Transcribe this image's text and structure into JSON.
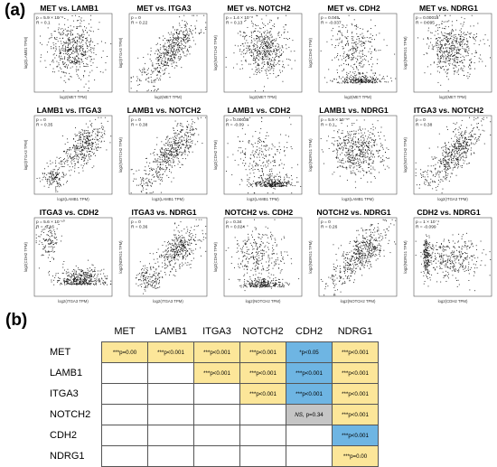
{
  "panel_labels": {
    "a": "(a)",
    "b": "(b)"
  },
  "chart_data": [
    {
      "type": "scatter",
      "title": "MET vs. LAMB1",
      "stat_p": "p = 5.9 × 10⁻⁶",
      "stat_r": "R = 0.1",
      "xlabel": "log2(MET TPM)",
      "ylabel": "log2(LAMB1 TPM)",
      "pattern": "blob"
    },
    {
      "type": "scatter",
      "title": "MET vs. ITGA3",
      "stat_p": "p = 0",
      "stat_r": "R = 0.22",
      "xlabel": "log2(MET TPM)",
      "ylabel": "log2(ITGA3 TPM)",
      "pattern": "diag"
    },
    {
      "type": "scatter",
      "title": "MET vs. NOTCH2",
      "stat_p": "p = 1.4 × 10⁻⁸",
      "stat_r": "R = 0.13",
      "xlabel": "log2(MET TPM)",
      "ylabel": "log2(NOTCH2 TPM)",
      "pattern": "blob"
    },
    {
      "type": "scatter",
      "title": "MET vs. CDH2",
      "stat_p": "p = 0.045",
      "stat_r": "R = -0.037",
      "xlabel": "log2(MET TPM)",
      "ylabel": "log2(CDH2 TPM)",
      "pattern": "split"
    },
    {
      "type": "scatter",
      "title": "MET vs. NDRG1",
      "stat_p": "p = 0.00018",
      "stat_r": "R = 0.095",
      "xlabel": "log2(MET TPM)",
      "ylabel": "log2(NDRG1 TPM)",
      "pattern": "blob"
    },
    {
      "type": "scatter",
      "title": "LAMB1 vs. ITGA3",
      "stat_p": "p = 0",
      "stat_r": "R = 0.35",
      "xlabel": "log2(LAMB1 TPM)",
      "ylabel": "log2(ITGA3 TPM)",
      "pattern": "diag2"
    },
    {
      "type": "scatter",
      "title": "LAMB1 vs. NOTCH2",
      "stat_p": "p = 0",
      "stat_r": "R = 0.38",
      "xlabel": "log2(LAMB1 TPM)",
      "ylabel": "log2(NOTCH2 TPM)",
      "pattern": "diag"
    },
    {
      "type": "scatter",
      "title": "LAMB1 vs. CDH2",
      "stat_p": "p = 0.00038",
      "stat_r": "R = -0.09",
      "xlabel": "log2(LAMB1 TPM)",
      "ylabel": "log2(CDH2 TPM)",
      "pattern": "bottom"
    },
    {
      "type": "scatter",
      "title": "LAMB1 vs. NDRG1",
      "stat_p": "p = 5.9 × 10⁻⁵",
      "stat_r": "R = 0.1",
      "xlabel": "log2(LAMB1 TPM)",
      "ylabel": "log2(NDRG1 TPM)",
      "pattern": "blob"
    },
    {
      "type": "scatter",
      "title": "ITGA3 vs. NOTCH2",
      "stat_p": "p = 0",
      "stat_r": "R = 0.38",
      "xlabel": "log2(ITGA3 TPM)",
      "ylabel": "log2(NOTCH2 TPM)",
      "pattern": "diag"
    },
    {
      "type": "scatter",
      "title": "ITGA3 vs. CDH2",
      "stat_p": "p = 5.6 × 10⁻¹⁰",
      "stat_r": "R = -0.16",
      "xlabel": "log2(ITGA3 TPM)",
      "ylabel": "log2(CDH2 TPM)",
      "pattern": "anti"
    },
    {
      "type": "scatter",
      "title": "ITGA3 vs. NDRG1",
      "stat_p": "p = 0",
      "stat_r": "R = 0.36",
      "xlabel": "log2(ITGA3 TPM)",
      "ylabel": "log2(NDRG1 TPM)",
      "pattern": "diag2"
    },
    {
      "type": "scatter",
      "title": "NOTCH2 vs. CDH2",
      "stat_p": "p = 0.34",
      "stat_r": "R = 0.024",
      "xlabel": "log2(NOTCH2 TPM)",
      "ylabel": "log2(CDH2 TPM)",
      "pattern": "split"
    },
    {
      "type": "scatter",
      "title": "NOTCH2 vs. NDRG1",
      "stat_p": "p = 0",
      "stat_r": "R = 0.26",
      "xlabel": "log2(NOTCH2 TPM)",
      "ylabel": "log2(NDRG1 TPM)",
      "pattern": "diag"
    },
    {
      "type": "scatter",
      "title": "CDH2 vs. NDRG1",
      "stat_p": "p = 1 × 10⁻⁴",
      "stat_r": "R = -0.099",
      "xlabel": "log2(CDH2 TPM)",
      "ylabel": "log2(NDRG1 TPM)",
      "pattern": "left"
    }
  ],
  "table": {
    "columns": [
      "MET",
      "LAMB1",
      "ITGA3",
      "NOTCH2",
      "CDH2",
      "NDRG1"
    ],
    "rows": [
      {
        "label": "MET",
        "cells": [
          {
            "sig": "***",
            "text": "p=0.00",
            "color": "#fce699"
          },
          {
            "sig": "***",
            "text": "p<0.001",
            "color": "#fce699"
          },
          {
            "sig": "***",
            "text": "p<0.001",
            "color": "#fce699"
          },
          {
            "sig": "***",
            "text": "p<0.001",
            "color": "#fce699"
          },
          {
            "sig": "*",
            "text": "p<0.05",
            "color": "#6eb5e3"
          },
          {
            "sig": "***",
            "text": "p<0.001",
            "color": "#fce699"
          }
        ]
      },
      {
        "label": "LAMB1",
        "cells": [
          null,
          null,
          {
            "sig": "***",
            "text": "p<0.001",
            "color": "#fce699"
          },
          {
            "sig": "***",
            "text": "p<0.001",
            "color": "#fce699"
          },
          {
            "sig": "***",
            "text": "p<0.001",
            "color": "#6eb5e3"
          },
          {
            "sig": "***",
            "text": "p<0.001",
            "color": "#fce699"
          }
        ]
      },
      {
        "label": "ITGA3",
        "cells": [
          null,
          null,
          null,
          {
            "sig": "***",
            "text": "p<0.001",
            "color": "#fce699"
          },
          {
            "sig": "***",
            "text": "p<0.001",
            "color": "#6eb5e3"
          },
          {
            "sig": "***",
            "text": "p<0.001",
            "color": "#fce699"
          }
        ]
      },
      {
        "label": "NOTCH2",
        "cells": [
          null,
          null,
          null,
          null,
          {
            "sig": "NS,",
            "text": "p=0.34",
            "color": "#c5c5c5"
          },
          {
            "sig": "***",
            "text": "p<0.001",
            "color": "#fce699"
          }
        ]
      },
      {
        "label": "CDH2",
        "cells": [
          null,
          null,
          null,
          null,
          null,
          {
            "sig": "***",
            "text": "p<0.001",
            "color": "#6eb5e3"
          }
        ]
      },
      {
        "label": "NDRG1",
        "cells": [
          null,
          null,
          null,
          null,
          null,
          {
            "sig": "***",
            "text": "p=0.00",
            "color": "#fce699"
          }
        ]
      }
    ]
  }
}
